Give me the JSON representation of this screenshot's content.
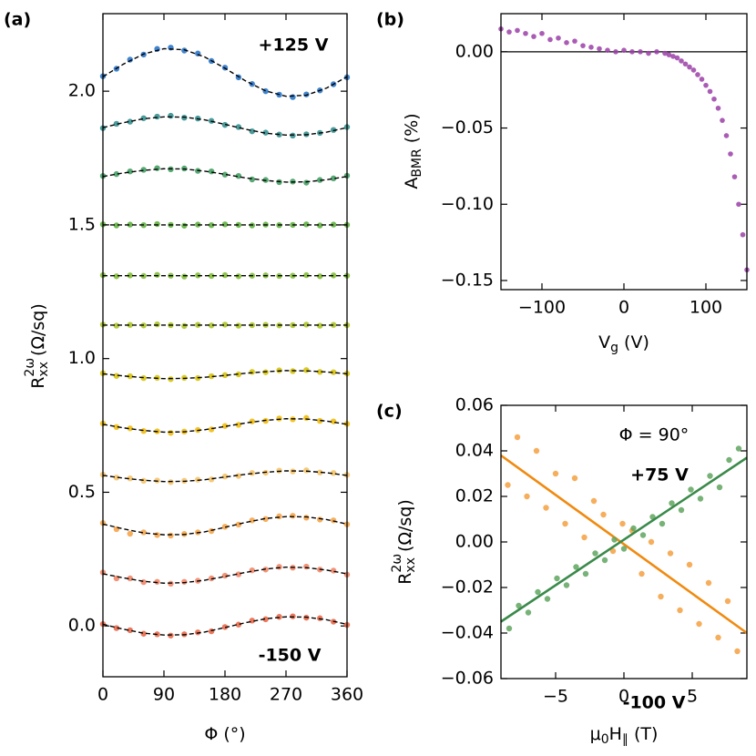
{
  "chart_data": [
    {
      "type": "scatter",
      "panel_label": "(a)",
      "xlabel": [
        {
          "text": "Φ (°)"
        }
      ],
      "ylabel": [
        {
          "text": "R"
        },
        {
          "text": "2ω",
          "shift": "sup"
        },
        {
          "text": "xx",
          "shift": "sub"
        },
        {
          "text": " (Ω/sq)"
        }
      ],
      "xlim": [
        0,
        360
      ],
      "ylim": [
        -0.19,
        2.29
      ],
      "xticks": [
        0,
        90,
        180,
        270,
        360
      ],
      "yticks": [
        {
          "value": 0,
          "label": "0.0"
        },
        0.5,
        {
          "value": 1,
          "label": "1.0"
        },
        1.5,
        {
          "value": 2,
          "label": "2.0"
        }
      ],
      "fit_dashed": true,
      "fit_color": "#000000",
      "x": [
        0,
        20,
        40,
        60,
        80,
        100,
        120,
        140,
        160,
        180,
        200,
        220,
        240,
        260,
        280,
        300,
        320,
        340,
        360
      ],
      "fit_x": [
        0,
        30,
        60,
        90,
        120,
        150,
        180,
        210,
        240,
        270,
        300,
        330,
        360
      ],
      "series": [
        {
          "color": "#1f6fc5",
          "values": [
            2.056,
            2.084,
            2.118,
            2.137,
            2.158,
            2.163,
            2.152,
            2.141,
            2.113,
            2.088,
            2.052,
            2.027,
            2.0,
            1.987,
            1.978,
            1.988,
            2.003,
            2.026,
            2.052
          ],
          "fit_values": [
            2.054,
            2.101,
            2.139,
            2.159,
            2.155,
            2.128,
            2.086,
            2.039,
            2.001,
            1.981,
            1.985,
            2.012,
            2.054
          ]
        },
        {
          "color": "#2a8a8a",
          "values": [
            1.862,
            1.878,
            1.886,
            1.899,
            1.905,
            1.908,
            1.901,
            1.898,
            1.889,
            1.874,
            1.866,
            1.85,
            1.845,
            1.838,
            1.834,
            1.839,
            1.844,
            1.855,
            1.866
          ],
          "fit_values": [
            1.864,
            1.882,
            1.897,
            1.904,
            1.903,
            1.893,
            1.876,
            1.858,
            1.843,
            1.836,
            1.837,
            1.847,
            1.864
          ]
        },
        {
          "color": "#3a9a5a",
          "values": [
            1.683,
            1.69,
            1.7,
            1.706,
            1.712,
            1.708,
            1.711,
            1.702,
            1.7,
            1.688,
            1.683,
            1.67,
            1.668,
            1.66,
            1.662,
            1.658,
            1.668,
            1.674,
            1.684
          ],
          "fit_values": [
            1.681,
            1.694,
            1.704,
            1.71,
            1.709,
            1.701,
            1.689,
            1.676,
            1.666,
            1.66,
            1.661,
            1.669,
            1.681
          ]
        },
        {
          "color": "#55aa33",
          "values": [
            1.502,
            1.498,
            1.501,
            1.499,
            1.503,
            1.5,
            1.497,
            1.501,
            1.499,
            1.502,
            1.5,
            1.498,
            1.501,
            1.499,
            1.5,
            1.502,
            1.498,
            1.501,
            1.5
          ],
          "fit_values": [
            1.5,
            1.5,
            1.5,
            1.5,
            1.5,
            1.5,
            1.5,
            1.5,
            1.5,
            1.5,
            1.5,
            1.5,
            1.5
          ]
        },
        {
          "color": "#7ab82a",
          "values": [
            1.312,
            1.308,
            1.311,
            1.309,
            1.313,
            1.31,
            1.307,
            1.311,
            1.309,
            1.312,
            1.308,
            1.31,
            1.311,
            1.309,
            1.31,
            1.312,
            1.308,
            1.311,
            1.31
          ],
          "fit_values": [
            1.31,
            1.31,
            1.31,
            1.31,
            1.31,
            1.31,
            1.31,
            1.31,
            1.31,
            1.31,
            1.31,
            1.31,
            1.31
          ]
        },
        {
          "color": "#a8c01a",
          "values": [
            1.127,
            1.123,
            1.126,
            1.124,
            1.128,
            1.125,
            1.122,
            1.126,
            1.124,
            1.127,
            1.123,
            1.125,
            1.126,
            1.124,
            1.125,
            1.127,
            1.123,
            1.126,
            1.125
          ],
          "fit_values": [
            1.125,
            1.125,
            1.125,
            1.125,
            1.125,
            1.125,
            1.125,
            1.125,
            1.125,
            1.125,
            1.125,
            1.125,
            1.125
          ]
        },
        {
          "color": "#d4c000",
          "values": [
            0.945,
            0.935,
            0.934,
            0.927,
            0.928,
            0.923,
            0.928,
            0.927,
            0.934,
            0.938,
            0.941,
            0.95,
            0.949,
            0.956,
            0.953,
            0.957,
            0.95,
            0.949,
            0.944
          ],
          "fit_values": [
            0.943,
            0.935,
            0.929,
            0.925,
            0.926,
            0.93,
            0.937,
            0.945,
            0.951,
            0.955,
            0.954,
            0.95,
            0.943
          ]
        },
        {
          "color": "#f0b800",
          "values": [
            0.757,
            0.744,
            0.739,
            0.729,
            0.728,
            0.722,
            0.727,
            0.733,
            0.735,
            0.748,
            0.752,
            0.765,
            0.767,
            0.776,
            0.773,
            0.778,
            0.767,
            0.765,
            0.756
          ],
          "fit_values": [
            0.754,
            0.741,
            0.731,
            0.725,
            0.726,
            0.734,
            0.746,
            0.759,
            0.769,
            0.775,
            0.774,
            0.766,
            0.754
          ]
        },
        {
          "color": "#f5c060",
          "values": [
            0.566,
            0.555,
            0.552,
            0.543,
            0.544,
            0.538,
            0.543,
            0.547,
            0.548,
            0.559,
            0.561,
            0.572,
            0.573,
            0.581,
            0.578,
            0.582,
            0.574,
            0.572,
            0.565
          ],
          "fit_values": [
            0.563,
            0.553,
            0.545,
            0.54,
            0.541,
            0.547,
            0.557,
            0.567,
            0.575,
            0.58,
            0.579,
            0.573,
            0.563
          ]
        },
        {
          "color": "#f5a040",
          "values": [
            0.385,
            0.362,
            0.345,
            0.35,
            0.34,
            0.338,
            0.344,
            0.35,
            0.355,
            0.371,
            0.379,
            0.395,
            0.4,
            0.41,
            0.412,
            0.405,
            0.398,
            0.395,
            0.38
          ],
          "fit_values": [
            0.381,
            0.363,
            0.348,
            0.341,
            0.342,
            0.352,
            0.369,
            0.387,
            0.402,
            0.409,
            0.408,
            0.398,
            0.381
          ]
        },
        {
          "color": "#f08060",
          "values": [
            0.2,
            0.178,
            0.178,
            0.164,
            0.165,
            0.158,
            0.165,
            0.169,
            0.178,
            0.188,
            0.193,
            0.208,
            0.211,
            0.221,
            0.218,
            0.222,
            0.211,
            0.207,
            0.192
          ],
          "fit_values": [
            0.195,
            0.18,
            0.167,
            0.16,
            0.162,
            0.171,
            0.185,
            0.2,
            0.213,
            0.22,
            0.218,
            0.209,
            0.195
          ]
        },
        {
          "color": "#e86040",
          "values": [
            0.007,
            -0.008,
            -0.016,
            -0.029,
            -0.031,
            -0.036,
            -0.031,
            -0.024,
            -0.02,
            -0.004,
            0.005,
            0.02,
            0.025,
            0.034,
            0.036,
            0.031,
            0.029,
            0.016,
            0.004
          ],
          "fit_values": [
            0.006,
            -0.012,
            -0.027,
            -0.034,
            -0.033,
            -0.023,
            -0.006,
            0.012,
            0.027,
            0.034,
            0.033,
            0.023,
            0.006
          ]
        }
      ],
      "annotations": [
        {
          "text": "+125 V",
          "color": "#1f6fc5"
        },
        {
          "text": "-150 V",
          "color": "#e8401a"
        }
      ]
    },
    {
      "type": "scatter",
      "panel_label": "(b)",
      "xlabel": [
        {
          "text": "V"
        },
        {
          "text": "g",
          "shift": "sub"
        },
        {
          "text": " (V)"
        }
      ],
      "ylabel": [
        {
          "text": "A"
        },
        {
          "text": "BMR",
          "shift": "sub"
        },
        {
          "text": " (%)"
        }
      ],
      "xlim": [
        -150,
        150
      ],
      "ylim": [
        -0.156,
        0.025
      ],
      "xticks": [
        {
          "value": -100,
          "label": "−100"
        },
        0,
        100
      ],
      "yticks": [
        {
          "value": 0,
          "label": "0.00"
        },
        {
          "value": -0.05,
          "label": "−0.05"
        },
        {
          "value": -0.1,
          "label": "−0.10"
        },
        {
          "value": -0.15,
          "label": "−0.15"
        }
      ],
      "hline": 0,
      "x": [
        -150,
        -140,
        -130,
        -120,
        -110,
        -100,
        -90,
        -80,
        -70,
        -60,
        -50,
        -40,
        -30,
        -20,
        -10,
        0,
        10,
        20,
        30,
        40,
        50,
        55,
        60,
        65,
        70,
        75,
        80,
        85,
        90,
        95,
        100,
        105,
        110,
        115,
        120,
        125,
        130,
        135,
        140,
        145,
        150
      ],
      "series": [
        {
          "color": "#9b3fa8",
          "values": [
            0.015,
            0.013,
            0.014,
            0.012,
            0.01,
            0.012,
            0.008,
            0.009,
            0.006,
            0.007,
            0.004,
            0.003,
            0.002,
            0.001,
            0.0,
            0.001,
            0.0,
            0.0,
            -0.001,
            0.0,
            -0.001,
            -0.002,
            -0.003,
            -0.004,
            -0.006,
            -0.008,
            -0.01,
            -0.012,
            -0.015,
            -0.018,
            -0.022,
            -0.026,
            -0.031,
            -0.037,
            -0.045,
            -0.055,
            -0.067,
            -0.082,
            -0.1,
            -0.12,
            -0.143
          ]
        }
      ]
    },
    {
      "type": "scatter",
      "panel_label": "(c)",
      "xlabel": [
        {
          "text": "μ"
        },
        {
          "text": "0",
          "shift": "sub"
        },
        {
          "text": "H"
        },
        {
          "text": "∥",
          "shift": "sub"
        },
        {
          "text": " (T)"
        }
      ],
      "ylabel": [
        {
          "text": "R"
        },
        {
          "text": "2ω",
          "shift": "sup"
        },
        {
          "text": "xx",
          "shift": "sub"
        },
        {
          "text": " (Ω/sq)"
        }
      ],
      "xlim": [
        -9,
        9
      ],
      "ylim": [
        -0.06,
        0.06
      ],
      "xticks": [
        {
          "value": -5,
          "label": "−5"
        },
        0,
        5
      ],
      "yticks": [
        {
          "value": 0.06,
          "label": "0.06"
        },
        {
          "value": 0.04,
          "label": "0.04"
        },
        {
          "value": 0.02,
          "label": "0.02"
        },
        {
          "value": 0,
          "label": "0.00"
        },
        {
          "value": -0.02,
          "label": "−0.02"
        },
        {
          "value": -0.04,
          "label": "−0.04"
        },
        {
          "value": -0.06,
          "label": "−0.06"
        }
      ],
      "series": [
        {
          "color": "#f5a040",
          "fit_color": "#f08a10",
          "x": [
            -8.5,
            -7.8,
            -7.1,
            -6.4,
            -5.7,
            -5.0,
            -4.3,
            -3.6,
            -2.9,
            -2.2,
            -1.5,
            -0.8,
            -0.1,
            0.6,
            1.3,
            2.0,
            2.7,
            3.4,
            4.1,
            4.8,
            5.5,
            6.2,
            6.9,
            7.6,
            8.3
          ],
          "values": [
            0.025,
            0.046,
            0.02,
            0.04,
            0.015,
            0.03,
            0.008,
            0.028,
            0.002,
            0.018,
            0.012,
            -0.004,
            0.008,
            0.005,
            -0.014,
            0.0,
            -0.024,
            -0.005,
            -0.03,
            -0.01,
            -0.036,
            -0.018,
            -0.042,
            -0.026,
            -0.048
          ],
          "fit_x": [
            -9,
            9
          ],
          "fit_values": [
            0.038,
            -0.04
          ]
        },
        {
          "color": "#5fa55f",
          "fit_color": "#3a8a4a",
          "x": [
            -8.4,
            -7.7,
            -7.0,
            -6.3,
            -5.6,
            -4.9,
            -4.2,
            -3.5,
            -2.8,
            -2.1,
            -1.4,
            -0.7,
            0.0,
            0.7,
            1.4,
            2.1,
            2.8,
            3.5,
            4.2,
            4.9,
            5.6,
            6.3,
            7.0,
            7.7,
            8.4
          ],
          "values": [
            -0.038,
            -0.028,
            -0.031,
            -0.022,
            -0.025,
            -0.016,
            -0.019,
            -0.011,
            -0.014,
            -0.005,
            -0.008,
            0.001,
            -0.003,
            0.006,
            0.003,
            0.011,
            0.008,
            0.017,
            0.014,
            0.023,
            0.019,
            0.029,
            0.024,
            0.036,
            0.041
          ],
          "fit_x": [
            -9,
            9
          ],
          "fit_values": [
            -0.035,
            0.037
          ]
        }
      ],
      "annotations": [
        {
          "text": "Φ =  90°",
          "color": "#000000"
        },
        {
          "text": "+75 V",
          "color": "#3a8a4a"
        },
        {
          "text": "-100 V",
          "color": "#f08a10"
        }
      ]
    }
  ]
}
